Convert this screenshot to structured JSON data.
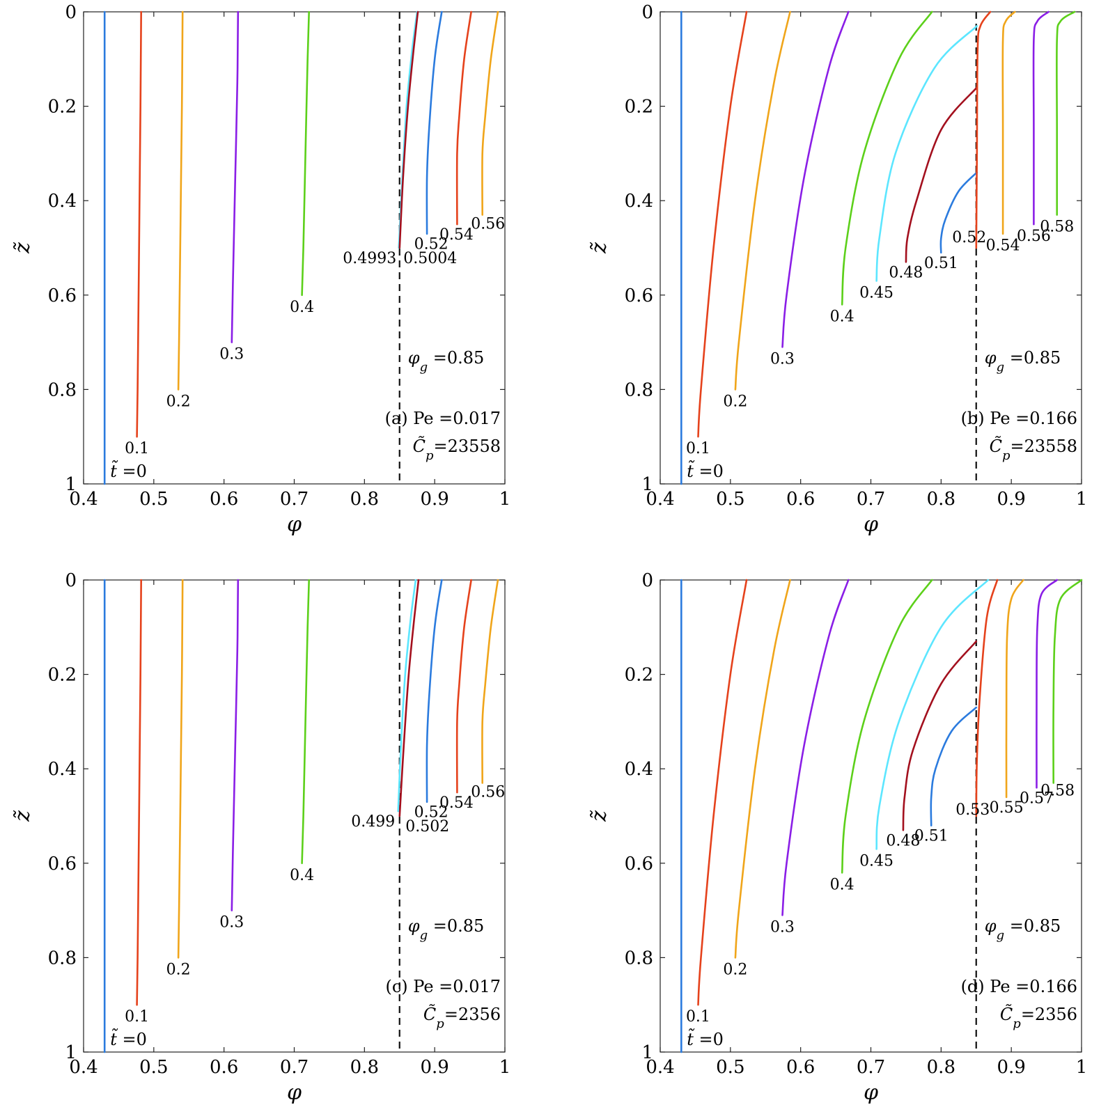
{
  "colors": {
    "blue": "#2b7bde",
    "red": "#e5421c",
    "yellow": "#f0a51a",
    "purple": "#8a1ee6",
    "green": "#5cd01a",
    "cyan": "#5ce6ff",
    "maroon": "#a3101e",
    "dash": "#111111"
  },
  "chart_data": [
    {
      "id": "a",
      "type": "line",
      "xlabel": "φ",
      "ylabel": "z̃",
      "xlim": [
        0.4,
        1
      ],
      "ylim": [
        0,
        1
      ],
      "y_reversed": true,
      "xticks": [
        "0.4",
        "0.5",
        "0.6",
        "0.7",
        "0.8",
        "0.9",
        "1"
      ],
      "yticks": [
        "0",
        "0.2",
        "0.4",
        "0.6",
        "0.8",
        "1"
      ],
      "phi_g": 0.85,
      "annotations": [
        "φ_g =0.85",
        "(a) Pe =0.017",
        "C̃_p=23558"
      ],
      "series": [
        {
          "name": "t̃ =0",
          "color": "blue",
          "x": [
            0.43,
            0.43
          ],
          "y": [
            0,
            1
          ]
        },
        {
          "name": "0.1",
          "color": "red",
          "x": [
            0.482,
            0.481,
            0.479,
            0.477,
            0.476
          ],
          "y": [
            0,
            0.2,
            0.5,
            0.8,
            0.9
          ]
        },
        {
          "name": "0.2",
          "color": "yellow",
          "x": [
            0.541,
            0.54,
            0.538,
            0.536,
            0.535
          ],
          "y": [
            0,
            0.2,
            0.45,
            0.7,
            0.8
          ]
        },
        {
          "name": "0.3",
          "color": "purple",
          "x": [
            0.62,
            0.619,
            0.616,
            0.613,
            0.611
          ],
          "y": [
            0,
            0.15,
            0.35,
            0.55,
            0.7
          ]
        },
        {
          "name": "0.4",
          "color": "green",
          "x": [
            0.721,
            0.719,
            0.716,
            0.713,
            0.711
          ],
          "y": [
            0,
            0.1,
            0.3,
            0.5,
            0.6
          ]
        },
        {
          "name": "0.4993",
          "color": "cyan",
          "x": [
            0.875,
            0.868,
            0.86,
            0.854,
            0.849
          ],
          "y": [
            0,
            0.08,
            0.2,
            0.35,
            0.5
          ]
        },
        {
          "name": "0.5004",
          "color": "maroon",
          "x": [
            0.876,
            0.87,
            0.862,
            0.855,
            0.85
          ],
          "y": [
            0,
            0.08,
            0.2,
            0.35,
            0.5
          ]
        },
        {
          "name": "0.52",
          "color": "blue",
          "x": [
            0.91,
            0.9,
            0.892,
            0.889,
            0.889
          ],
          "y": [
            0,
            0.1,
            0.25,
            0.35,
            0.47
          ]
        },
        {
          "name": "0.54",
          "color": "red",
          "x": [
            0.952,
            0.942,
            0.935,
            0.932,
            0.932
          ],
          "y": [
            0,
            0.1,
            0.22,
            0.3,
            0.45
          ]
        },
        {
          "name": "0.56",
          "color": "yellow",
          "x": [
            0.99,
            0.98,
            0.972,
            0.968,
            0.968
          ],
          "y": [
            0,
            0.1,
            0.22,
            0.3,
            0.43
          ]
        }
      ]
    },
    {
      "id": "b",
      "type": "line",
      "xlabel": "φ",
      "ylabel": "z̃",
      "xlim": [
        0.4,
        1
      ],
      "ylim": [
        0,
        1
      ],
      "y_reversed": true,
      "xticks": [
        "0.4",
        "0.5",
        "0.6",
        "0.7",
        "0.8",
        "0.9",
        "1"
      ],
      "yticks": [
        "0",
        "0.2",
        "0.4",
        "0.6",
        "0.8",
        "1"
      ],
      "phi_g": 0.85,
      "annotations": [
        "φ_g =0.85",
        "(b) Pe =0.166",
        "C̃_p=23558"
      ],
      "series": [
        {
          "name": "t̃ =0",
          "color": "blue",
          "x": [
            0.43,
            0.43
          ],
          "y": [
            0,
            1
          ]
        },
        {
          "name": "0.1",
          "color": "red",
          "x": [
            0.523,
            0.5,
            0.476,
            0.458,
            0.454
          ],
          "y": [
            0,
            0.2,
            0.5,
            0.8,
            0.9
          ]
        },
        {
          "name": "0.2",
          "color": "yellow",
          "x": [
            0.585,
            0.562,
            0.535,
            0.512,
            0.507
          ],
          "y": [
            0,
            0.15,
            0.4,
            0.7,
            0.8
          ]
        },
        {
          "name": "0.3",
          "color": "purple",
          "x": [
            0.668,
            0.64,
            0.605,
            0.58,
            0.574
          ],
          "y": [
            0,
            0.12,
            0.35,
            0.6,
            0.71
          ]
        },
        {
          "name": "0.4",
          "color": "green",
          "x": [
            0.787,
            0.74,
            0.69,
            0.664,
            0.659
          ],
          "y": [
            0,
            0.1,
            0.3,
            0.5,
            0.62
          ]
        },
        {
          "name": "0.45",
          "color": "cyan",
          "x": [
            0.851,
            0.79,
            0.735,
            0.712,
            0.708
          ],
          "y": [
            0.03,
            0.12,
            0.3,
            0.48,
            0.57
          ]
        },
        {
          "name": "0.48",
          "color": "maroon",
          "x": [
            0.851,
            0.8,
            0.765,
            0.752,
            0.75
          ],
          "y": [
            0.16,
            0.25,
            0.4,
            0.48,
            0.53
          ]
        },
        {
          "name": "0.51",
          "color": "blue",
          "x": [
            0.851,
            0.825,
            0.806,
            0.8,
            0.8
          ],
          "y": [
            0.34,
            0.38,
            0.44,
            0.48,
            0.51
          ]
        },
        {
          "name": "0.52",
          "color": "red",
          "x": [
            0.87,
            0.856,
            0.852,
            0.851,
            0.85
          ],
          "y": [
            0,
            0.03,
            0.08,
            0.3,
            0.5
          ]
        },
        {
          "name": "0.54",
          "color": "yellow",
          "x": [
            0.905,
            0.892,
            0.888,
            0.888,
            0.888
          ],
          "y": [
            0,
            0.02,
            0.06,
            0.25,
            0.47
          ]
        },
        {
          "name": "0.56",
          "color": "purple",
          "x": [
            0.953,
            0.937,
            0.932,
            0.932,
            0.932
          ],
          "y": [
            0,
            0.02,
            0.06,
            0.25,
            0.45
          ]
        },
        {
          "name": "0.58",
          "color": "green",
          "x": [
            0.99,
            0.97,
            0.965,
            0.965,
            0.965
          ],
          "y": [
            0,
            0.02,
            0.06,
            0.25,
            0.43
          ]
        }
      ]
    },
    {
      "id": "c",
      "type": "line",
      "xlabel": "φ",
      "ylabel": "z̃",
      "xlim": [
        0.4,
        1
      ],
      "ylim": [
        0,
        1
      ],
      "y_reversed": true,
      "xticks": [
        "0.4",
        "0.5",
        "0.6",
        "0.7",
        "0.8",
        "0.9",
        "1"
      ],
      "yticks": [
        "0",
        "0.2",
        "0.4",
        "0.6",
        "0.8",
        "1"
      ],
      "phi_g": 0.85,
      "annotations": [
        "φ_g =0.85",
        "(c) Pe =0.017",
        "C̃_p=2356"
      ],
      "series": [
        {
          "name": "t̃ =0",
          "color": "blue",
          "x": [
            0.43,
            0.43
          ],
          "y": [
            0,
            1
          ]
        },
        {
          "name": "0.1",
          "color": "red",
          "x": [
            0.482,
            0.481,
            0.479,
            0.477,
            0.476
          ],
          "y": [
            0,
            0.2,
            0.5,
            0.8,
            0.9
          ]
        },
        {
          "name": "0.2",
          "color": "yellow",
          "x": [
            0.541,
            0.54,
            0.538,
            0.536,
            0.535
          ],
          "y": [
            0,
            0.2,
            0.45,
            0.7,
            0.8
          ]
        },
        {
          "name": "0.3",
          "color": "purple",
          "x": [
            0.62,
            0.619,
            0.616,
            0.613,
            0.611
          ],
          "y": [
            0,
            0.15,
            0.35,
            0.55,
            0.7
          ]
        },
        {
          "name": "0.4",
          "color": "green",
          "x": [
            0.721,
            0.719,
            0.716,
            0.713,
            0.711
          ],
          "y": [
            0,
            0.1,
            0.3,
            0.5,
            0.6
          ]
        },
        {
          "name": "0.499",
          "color": "cyan",
          "x": [
            0.873,
            0.866,
            0.858,
            0.852,
            0.848
          ],
          "y": [
            0,
            0.08,
            0.2,
            0.35,
            0.49
          ]
        },
        {
          "name": "0.502",
          "color": "maroon",
          "x": [
            0.877,
            0.871,
            0.863,
            0.856,
            0.85
          ],
          "y": [
            0,
            0.08,
            0.2,
            0.35,
            0.5
          ]
        },
        {
          "name": "0.52",
          "color": "blue",
          "x": [
            0.91,
            0.9,
            0.892,
            0.889,
            0.889
          ],
          "y": [
            0,
            0.1,
            0.25,
            0.35,
            0.47
          ]
        },
        {
          "name": "0.54",
          "color": "red",
          "x": [
            0.952,
            0.942,
            0.935,
            0.932,
            0.932
          ],
          "y": [
            0,
            0.1,
            0.22,
            0.3,
            0.45
          ]
        },
        {
          "name": "0.56",
          "color": "yellow",
          "x": [
            0.99,
            0.98,
            0.972,
            0.968,
            0.968
          ],
          "y": [
            0,
            0.1,
            0.22,
            0.3,
            0.43
          ]
        }
      ]
    },
    {
      "id": "d",
      "type": "line",
      "xlabel": "φ",
      "ylabel": "z̃",
      "xlim": [
        0.4,
        1
      ],
      "ylim": [
        0,
        1
      ],
      "y_reversed": true,
      "xticks": [
        "0.4",
        "0.5",
        "0.6",
        "0.7",
        "0.8",
        "0.9",
        "1"
      ],
      "yticks": [
        "0",
        "0.2",
        "0.4",
        "0.6",
        "0.8",
        "1"
      ],
      "phi_g": 0.85,
      "annotations": [
        "φ_g =0.85",
        "(d) Pe =0.166",
        "C̃_p=2356"
      ],
      "series": [
        {
          "name": "t̃ =0",
          "color": "blue",
          "x": [
            0.43,
            0.43
          ],
          "y": [
            0,
            1
          ]
        },
        {
          "name": "0.1",
          "color": "red",
          "x": [
            0.523,
            0.5,
            0.476,
            0.458,
            0.454
          ],
          "y": [
            0,
            0.2,
            0.5,
            0.8,
            0.9
          ]
        },
        {
          "name": "0.2",
          "color": "yellow",
          "x": [
            0.585,
            0.562,
            0.535,
            0.512,
            0.507
          ],
          "y": [
            0,
            0.15,
            0.4,
            0.7,
            0.8
          ]
        },
        {
          "name": "0.3",
          "color": "purple",
          "x": [
            0.668,
            0.64,
            0.605,
            0.58,
            0.574
          ],
          "y": [
            0,
            0.12,
            0.35,
            0.6,
            0.71
          ]
        },
        {
          "name": "0.4",
          "color": "green",
          "x": [
            0.787,
            0.74,
            0.69,
            0.664,
            0.659
          ],
          "y": [
            0,
            0.1,
            0.3,
            0.5,
            0.62
          ]
        },
        {
          "name": "0.45",
          "color": "cyan",
          "x": [
            0.867,
            0.8,
            0.74,
            0.712,
            0.708
          ],
          "y": [
            0,
            0.1,
            0.3,
            0.48,
            0.57
          ]
        },
        {
          "name": "0.48",
          "color": "maroon",
          "x": [
            0.85,
            0.8,
            0.76,
            0.748,
            0.746
          ],
          "y": [
            0.13,
            0.22,
            0.36,
            0.46,
            0.53
          ]
        },
        {
          "name": "0.51",
          "color": "blue",
          "x": [
            0.85,
            0.815,
            0.792,
            0.786,
            0.786
          ],
          "y": [
            0.27,
            0.32,
            0.4,
            0.46,
            0.52
          ]
        },
        {
          "name": "0.53",
          "color": "red",
          "x": [
            0.88,
            0.865,
            0.855,
            0.851,
            0.85
          ],
          "y": [
            0,
            0.08,
            0.25,
            0.38,
            0.5
          ]
        },
        {
          "name": "0.55",
          "color": "yellow",
          "x": [
            0.917,
            0.9,
            0.894,
            0.893,
            0.893
          ],
          "y": [
            0,
            0.04,
            0.12,
            0.3,
            0.46
          ]
        },
        {
          "name": "0.57",
          "color": "purple",
          "x": [
            0.965,
            0.943,
            0.937,
            0.936,
            0.936
          ],
          "y": [
            0,
            0.03,
            0.1,
            0.25,
            0.44
          ]
        },
        {
          "name": "0.58",
          "color": "green",
          "x": [
            1.0,
            0.97,
            0.962,
            0.96,
            0.96
          ],
          "y": [
            0,
            0.04,
            0.12,
            0.27,
            0.43
          ]
        }
      ]
    }
  ]
}
